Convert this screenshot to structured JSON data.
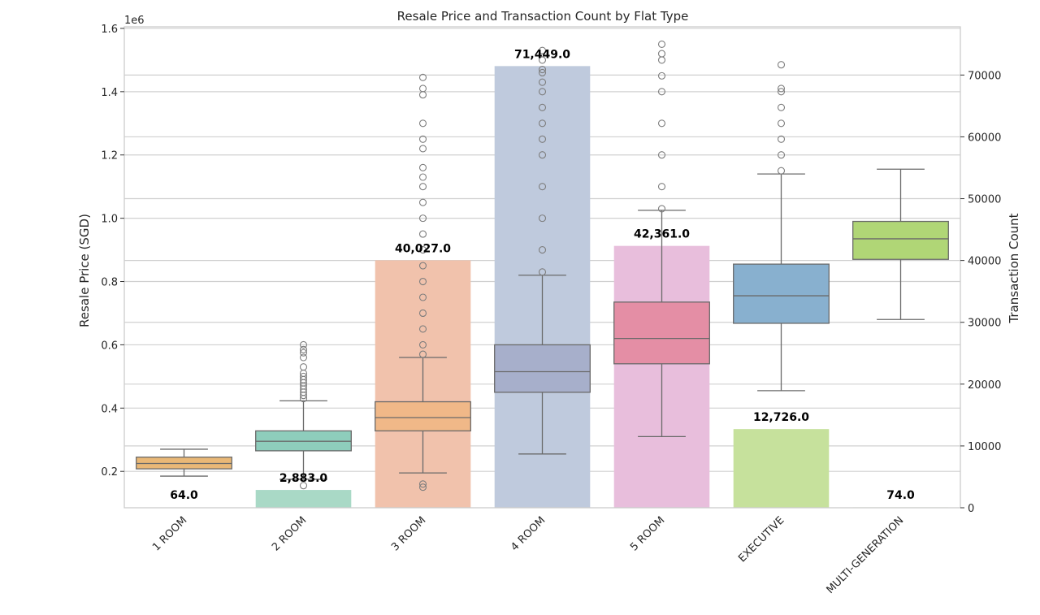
{
  "chart_data": {
    "type": "box",
    "title": "Resale Price and Transaction Count by Flat Type",
    "categories": [
      "1 ROOM",
      "2 ROOM",
      "3 ROOM",
      "4 ROOM",
      "5 ROOM",
      "EXECUTIVE",
      "MULTI-GENERATION"
    ],
    "left_axis": {
      "label": "Resale Price (SGD)",
      "offset_label": "1e6",
      "ticks": [
        0.2,
        0.4,
        0.6,
        0.8,
        1.0,
        1.2,
        1.4,
        1.6
      ],
      "tick_labels": [
        "0.2",
        "0.4",
        "0.6",
        "0.8",
        "1.0",
        "1.2",
        "1.4",
        "1.6"
      ],
      "range": [
        0.085,
        1.605
      ]
    },
    "right_axis": {
      "label": "Transaction Count",
      "ticks": [
        0,
        10000,
        20000,
        30000,
        40000,
        50000,
        60000,
        70000
      ],
      "tick_labels": [
        "0",
        "10000",
        "20000",
        "30000",
        "40000",
        "50000",
        "60000",
        "70000"
      ],
      "range": [
        0,
        77800
      ]
    },
    "grid": true,
    "counts": [
      64,
      2883,
      40027,
      71449,
      42361,
      12726,
      74
    ],
    "count_labels": [
      "64.0",
      "2,883.0",
      "40,027.0",
      "71,449.0",
      "42,361.0",
      "12,726.0",
      "74.0"
    ],
    "box_series": {
      "name": "Resale Price (SGD)",
      "boxes": [
        {
          "whisker_low": 0.185,
          "q1": 0.208,
          "median": 0.225,
          "q3": 0.245,
          "whisker_high": 0.27,
          "outliers": []
        },
        {
          "whisker_low": 0.175,
          "q1": 0.265,
          "median": 0.295,
          "q3": 0.328,
          "whisker_high": 0.423,
          "outliers": [
            0.155,
            0.43,
            0.44,
            0.45,
            0.46,
            0.47,
            0.48,
            0.49,
            0.5,
            0.51,
            0.53,
            0.56,
            0.575,
            0.585,
            0.6
          ]
        },
        {
          "whisker_low": 0.195,
          "q1": 0.328,
          "median": 0.37,
          "q3": 0.42,
          "whisker_high": 0.56,
          "outliers": [
            0.15,
            0.16,
            0.57,
            0.6,
            0.65,
            0.7,
            0.75,
            0.8,
            0.85,
            0.9,
            0.95,
            1.0,
            1.05,
            1.1,
            1.13,
            1.16,
            1.22,
            1.25,
            1.3,
            1.39,
            1.41,
            1.445
          ]
        },
        {
          "whisker_low": 0.255,
          "q1": 0.45,
          "median": 0.515,
          "q3": 0.6,
          "whisker_high": 0.82,
          "outliers": [
            0.83,
            0.9,
            1.0,
            1.1,
            1.2,
            1.25,
            1.3,
            1.35,
            1.4,
            1.43,
            1.46,
            1.47,
            1.5,
            1.53
          ]
        },
        {
          "whisker_low": 0.31,
          "q1": 0.54,
          "median": 0.62,
          "q3": 0.735,
          "whisker_high": 1.025,
          "outliers": [
            1.03,
            1.1,
            1.2,
            1.3,
            1.4,
            1.45,
            1.5,
            1.52,
            1.55
          ]
        },
        {
          "whisker_low": 0.455,
          "q1": 0.668,
          "median": 0.755,
          "q3": 0.855,
          "whisker_high": 1.14,
          "outliers": [
            1.15,
            1.2,
            1.25,
            1.3,
            1.35,
            1.4,
            1.41,
            1.485
          ]
        },
        {
          "whisker_low": 0.68,
          "q1": 0.87,
          "median": 0.935,
          "q3": 0.99,
          "whisker_high": 1.155,
          "outliers": []
        }
      ]
    },
    "colors": {
      "box": [
        "#e9b877",
        "#8ecdbc",
        "#f0b888",
        "#a7afcb",
        "#e48ea5",
        "#88b0cf",
        "#b0d676"
      ],
      "bar": [
        "#f4c990",
        "#a9d9c6",
        "#f1c2ac",
        "#bfcadd",
        "#e8bedc",
        "#c6e19c",
        "#d8e9a8"
      ],
      "outlier": "#7d7d7d",
      "grid": "#d0d0d0"
    }
  }
}
